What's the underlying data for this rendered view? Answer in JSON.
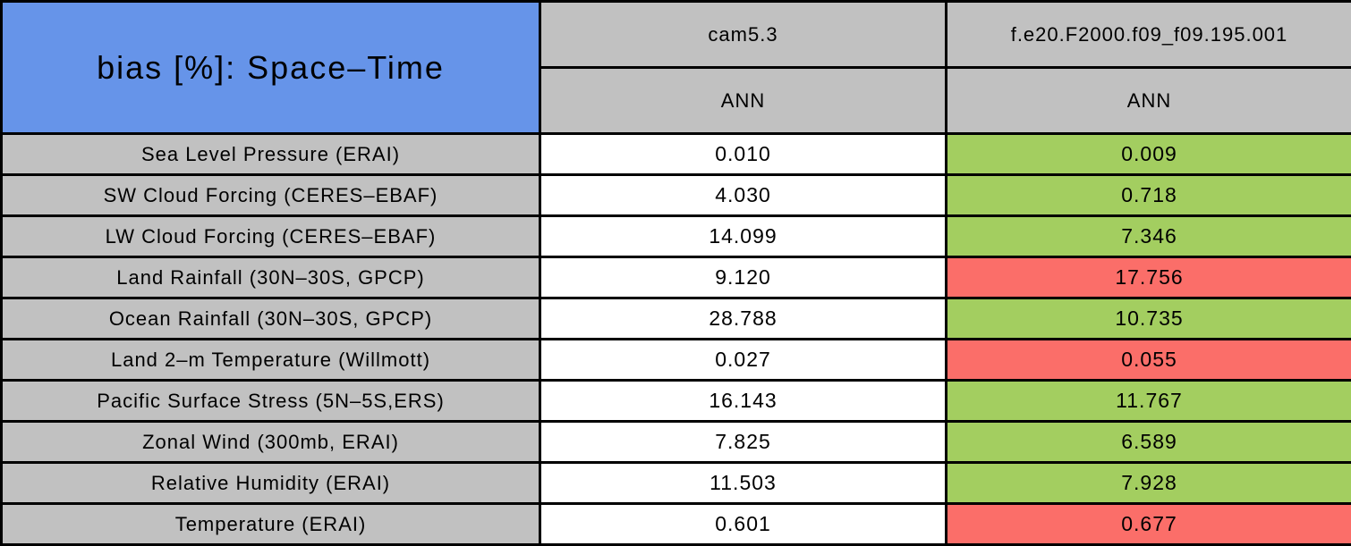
{
  "chart_data": {
    "type": "table",
    "title": "bias [%]: Space–Time",
    "columns": [
      {
        "name": "cam5.3",
        "season": "ANN"
      },
      {
        "name": "f.e20.F2000.f09_f09.195.001",
        "season": "ANN"
      }
    ],
    "rows": [
      {
        "metric": "Sea Level Pressure (ERAI)",
        "values": [
          "0.010",
          "0.009"
        ],
        "comparison": "improved"
      },
      {
        "metric": "SW Cloud Forcing (CERES–EBAF)",
        "values": [
          "4.030",
          "0.718"
        ],
        "comparison": "improved"
      },
      {
        "metric": "LW Cloud Forcing (CERES–EBAF)",
        "values": [
          "14.099",
          "7.346"
        ],
        "comparison": "improved"
      },
      {
        "metric": "Land Rainfall (30N–30S, GPCP)",
        "values": [
          "9.120",
          "17.756"
        ],
        "comparison": "degraded"
      },
      {
        "metric": "Ocean Rainfall (30N–30S, GPCP)",
        "values": [
          "28.788",
          "10.735"
        ],
        "comparison": "improved"
      },
      {
        "metric": "Land 2–m Temperature (Willmott)",
        "values": [
          "0.027",
          "0.055"
        ],
        "comparison": "degraded"
      },
      {
        "metric": "Pacific Surface Stress (5N–5S,ERS)",
        "values": [
          "16.143",
          "11.767"
        ],
        "comparison": "improved"
      },
      {
        "metric": "Zonal Wind (300mb, ERAI)",
        "values": [
          "7.825",
          "6.589"
        ],
        "comparison": "improved"
      },
      {
        "metric": "Relative Humidity (ERAI)",
        "values": [
          "11.503",
          "7.928"
        ],
        "comparison": "improved"
      },
      {
        "metric": "Temperature (ERAI)",
        "values": [
          "0.601",
          "0.677"
        ],
        "comparison": "degraded"
      }
    ]
  },
  "colors": {
    "title_blue": "#6694E9",
    "label_gray": "#C1C1C1",
    "improved_green": "#A3CE60",
    "degraded_red": "#FB6E69",
    "value_white": "#FFFFFF",
    "border_black": "#000000"
  }
}
